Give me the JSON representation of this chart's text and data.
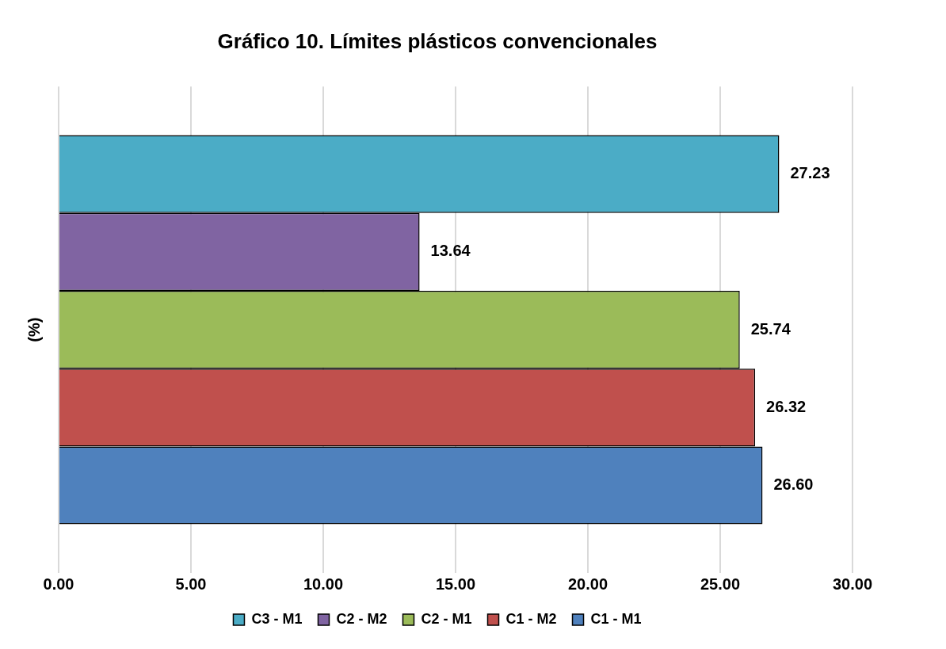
{
  "chart_data": {
    "type": "bar",
    "orientation": "horizontal",
    "title": "Gráfico 10. Límites plásticos convencionales",
    "ylabel": "(%)",
    "categories": [
      null
    ],
    "series": [
      {
        "name": "C3 - M1",
        "color": "#4bacc6",
        "values": [
          27.23
        ],
        "value_labels": [
          "27.23"
        ]
      },
      {
        "name": "C2 - M2",
        "color": "#8064a2",
        "values": [
          13.64
        ],
        "value_labels": [
          "13.64"
        ]
      },
      {
        "name": "C2 - M1",
        "color": "#9bbb59",
        "values": [
          25.74
        ],
        "value_labels": [
          "25.74"
        ]
      },
      {
        "name": "C1 - M2",
        "color": "#c0504d",
        "values": [
          26.32
        ],
        "value_labels": [
          "26.32"
        ]
      },
      {
        "name": "C1 - M1",
        "color": "#4f81bd",
        "values": [
          26.6
        ],
        "value_labels": [
          "26.60"
        ]
      }
    ],
    "xlim": [
      0,
      30
    ],
    "xticks": [
      {
        "value": 0,
        "label": "0.00"
      },
      {
        "value": 5,
        "label": "5.00"
      },
      {
        "value": 10,
        "label": "10.00"
      },
      {
        "value": 15,
        "label": "15.00"
      },
      {
        "value": 20,
        "label": "20.00"
      },
      {
        "value": 25,
        "label": "25.00"
      },
      {
        "value": 30,
        "label": "30.00"
      }
    ],
    "grid": "x",
    "legend": "bottom"
  }
}
